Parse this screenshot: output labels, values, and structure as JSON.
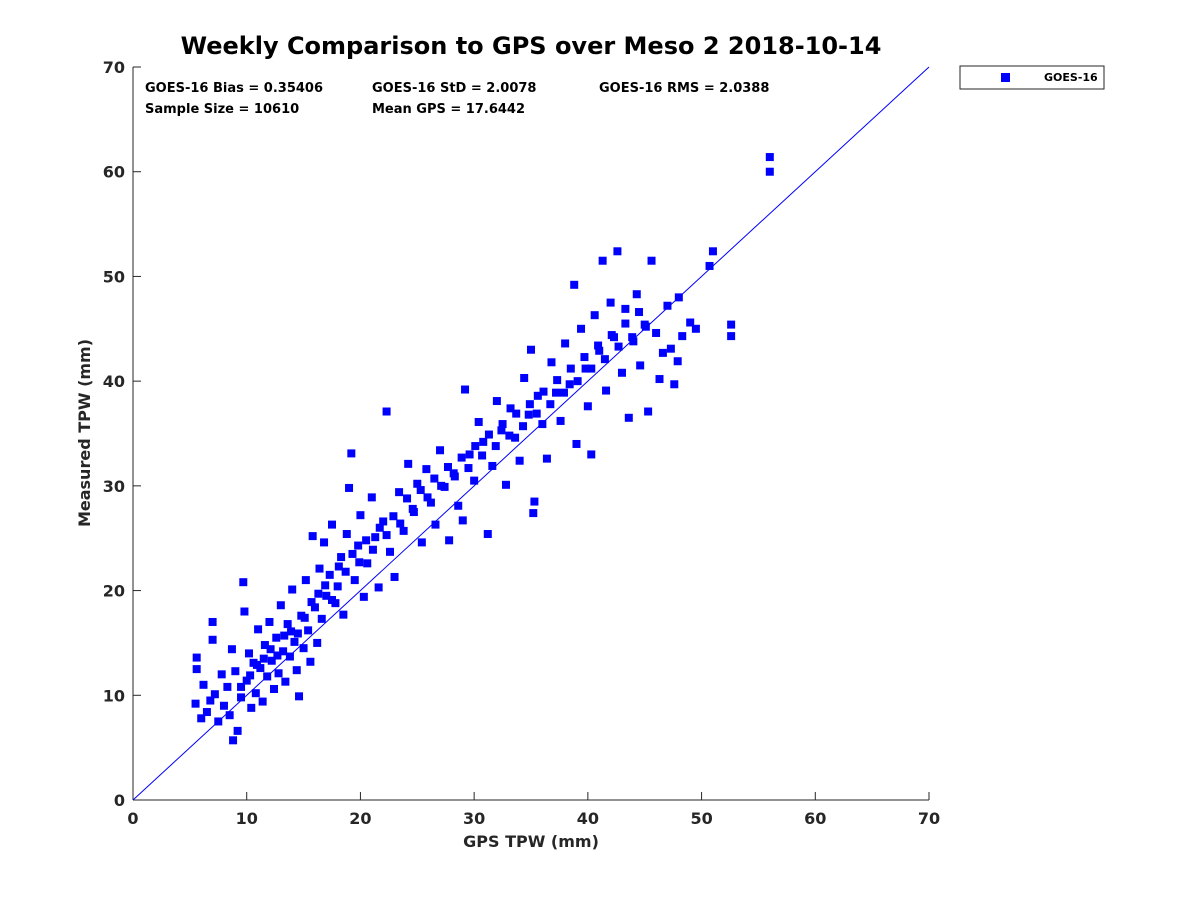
{
  "chart_data": {
    "type": "scatter",
    "title": "Weekly Comparison to GPS over Meso 2 2018-10-14",
    "xlabel": "GPS TPW (mm)",
    "ylabel": "Measured TPW (mm)",
    "xlim": [
      0,
      70
    ],
    "ylim": [
      0,
      70
    ],
    "xticks": [
      "0",
      "10",
      "20",
      "30",
      "40",
      "50",
      "60",
      "70"
    ],
    "yticks": [
      "0",
      "10",
      "20",
      "30",
      "40",
      "50",
      "60",
      "70"
    ],
    "grid": false,
    "legend_position": "outside-top-right",
    "reference_line": {
      "from": [
        0,
        0
      ],
      "to": [
        70,
        70
      ],
      "color": "#0000ff"
    },
    "stats": {
      "bias": "GOES-16 Bias = 0.35406",
      "std": "GOES-16 StD = 2.0078",
      "rms": "GOES-16 RMS = 2.0388",
      "sample_size": "Sample Size = 10610",
      "mean_gps": "Mean GPS = 17.6442"
    },
    "series": [
      {
        "name": "GOES-16",
        "color": "#0000ff",
        "marker": "square",
        "points": [
          [
            5.5,
            9.2
          ],
          [
            5.6,
            12.5
          ],
          [
            5.6,
            13.6
          ],
          [
            6.0,
            7.8
          ],
          [
            6.2,
            11.0
          ],
          [
            6.5,
            8.4
          ],
          [
            6.8,
            9.5
          ],
          [
            7.0,
            17.0
          ],
          [
            7.0,
            15.3
          ],
          [
            7.2,
            10.1
          ],
          [
            7.5,
            7.5
          ],
          [
            7.8,
            12.0
          ],
          [
            8.0,
            9.0
          ],
          [
            8.3,
            10.8
          ],
          [
            8.5,
            8.1
          ],
          [
            8.7,
            14.4
          ],
          [
            8.8,
            5.7
          ],
          [
            9.0,
            12.3
          ],
          [
            9.2,
            6.6
          ],
          [
            9.5,
            9.8
          ],
          [
            9.7,
            20.8
          ],
          [
            9.8,
            18.0
          ],
          [
            10.0,
            11.4
          ],
          [
            10.2,
            14.0
          ],
          [
            10.4,
            8.8
          ],
          [
            10.6,
            13.1
          ],
          [
            10.8,
            10.2
          ],
          [
            11.0,
            16.3
          ],
          [
            11.2,
            12.6
          ],
          [
            11.4,
            9.4
          ],
          [
            11.6,
            14.8
          ],
          [
            11.8,
            11.8
          ],
          [
            12.0,
            17.0
          ],
          [
            12.2,
            13.3
          ],
          [
            12.4,
            10.6
          ],
          [
            12.6,
            15.5
          ],
          [
            12.8,
            12.1
          ],
          [
            13.0,
            18.6
          ],
          [
            13.2,
            14.2
          ],
          [
            13.4,
            11.3
          ],
          [
            13.6,
            16.8
          ],
          [
            13.8,
            13.7
          ],
          [
            14.0,
            20.1
          ],
          [
            14.2,
            15.1
          ],
          [
            14.4,
            12.4
          ],
          [
            14.6,
            9.9
          ],
          [
            14.8,
            17.6
          ],
          [
            15.0,
            14.5
          ],
          [
            15.2,
            21.0
          ],
          [
            15.4,
            16.2
          ],
          [
            15.6,
            13.2
          ],
          [
            15.8,
            25.2
          ],
          [
            16.0,
            18.4
          ],
          [
            16.2,
            15.0
          ],
          [
            16.4,
            22.1
          ],
          [
            16.6,
            17.3
          ],
          [
            16.8,
            24.6
          ],
          [
            17.0,
            19.5
          ],
          [
            17.3,
            21.5
          ],
          [
            17.5,
            26.3
          ],
          [
            17.8,
            18.8
          ],
          [
            18.0,
            20.4
          ],
          [
            18.3,
            23.2
          ],
          [
            18.5,
            17.7
          ],
          [
            18.8,
            25.4
          ],
          [
            19.0,
            29.8
          ],
          [
            19.2,
            33.1
          ],
          [
            19.5,
            21.0
          ],
          [
            19.8,
            24.3
          ],
          [
            20.0,
            27.2
          ],
          [
            20.3,
            19.4
          ],
          [
            20.6,
            22.6
          ],
          [
            21.0,
            28.9
          ],
          [
            21.3,
            25.1
          ],
          [
            21.6,
            20.3
          ],
          [
            22.0,
            26.6
          ],
          [
            22.3,
            37.1
          ],
          [
            22.6,
            23.7
          ],
          [
            23.0,
            21.3
          ],
          [
            23.4,
            29.4
          ],
          [
            23.8,
            25.7
          ],
          [
            24.2,
            32.1
          ],
          [
            24.6,
            27.8
          ],
          [
            25.0,
            30.2
          ],
          [
            25.4,
            24.6
          ],
          [
            25.8,
            31.6
          ],
          [
            26.2,
            28.4
          ],
          [
            26.6,
            26.3
          ],
          [
            27.0,
            33.4
          ],
          [
            27.4,
            29.9
          ],
          [
            27.8,
            24.8
          ],
          [
            28.2,
            31.2
          ],
          [
            28.6,
            28.1
          ],
          [
            29.0,
            26.7
          ],
          [
            29.2,
            39.2
          ],
          [
            29.6,
            33.0
          ],
          [
            30.0,
            30.5
          ],
          [
            30.4,
            36.1
          ],
          [
            30.8,
            34.2
          ],
          [
            31.2,
            25.4
          ],
          [
            31.6,
            31.9
          ],
          [
            32.0,
            38.1
          ],
          [
            32.4,
            35.3
          ],
          [
            32.8,
            30.1
          ],
          [
            33.2,
            37.4
          ],
          [
            33.6,
            34.6
          ],
          [
            34.0,
            32.4
          ],
          [
            34.4,
            40.3
          ],
          [
            34.8,
            36.8
          ],
          [
            35.0,
            43.0
          ],
          [
            35.2,
            27.4
          ],
          [
            35.3,
            28.5
          ],
          [
            35.6,
            38.6
          ],
          [
            36.0,
            35.9
          ],
          [
            36.4,
            32.6
          ],
          [
            36.8,
            41.8
          ],
          [
            37.2,
            38.9
          ],
          [
            37.6,
            36.2
          ],
          [
            38.0,
            43.6
          ],
          [
            38.4,
            39.7
          ],
          [
            38.8,
            49.2
          ],
          [
            39.0,
            34.0
          ],
          [
            39.4,
            45.0
          ],
          [
            39.8,
            41.2
          ],
          [
            40.0,
            37.6
          ],
          [
            40.3,
            33.0
          ],
          [
            40.6,
            46.3
          ],
          [
            41.0,
            42.9
          ],
          [
            41.3,
            51.5
          ],
          [
            41.6,
            39.1
          ],
          [
            42.0,
            47.5
          ],
          [
            42.3,
            44.2
          ],
          [
            42.6,
            52.4
          ],
          [
            43.0,
            40.8
          ],
          [
            43.3,
            46.9
          ],
          [
            43.6,
            36.5
          ],
          [
            44.0,
            43.8
          ],
          [
            44.3,
            48.3
          ],
          [
            44.6,
            41.5
          ],
          [
            45.0,
            45.4
          ],
          [
            45.3,
            37.1
          ],
          [
            45.6,
            51.5
          ],
          [
            46.0,
            44.6
          ],
          [
            46.3,
            40.2
          ],
          [
            46.6,
            42.7
          ],
          [
            47.0,
            47.2
          ],
          [
            47.3,
            43.1
          ],
          [
            47.6,
            39.7
          ],
          [
            47.9,
            41.9
          ],
          [
            48.0,
            48.0
          ],
          [
            48.3,
            44.3
          ],
          [
            49.0,
            45.6
          ],
          [
            49.5,
            45.0
          ],
          [
            50.7,
            51.0
          ],
          [
            51.0,
            52.4
          ],
          [
            52.6,
            45.4
          ],
          [
            52.6,
            44.3
          ],
          [
            56.0,
            61.4
          ],
          [
            56.0,
            60.0
          ],
          [
            9.5,
            10.8
          ],
          [
            10.3,
            11.9
          ],
          [
            10.9,
            12.9
          ],
          [
            11.5,
            13.5
          ],
          [
            12.1,
            14.4
          ],
          [
            12.7,
            13.8
          ],
          [
            13.3,
            15.7
          ],
          [
            13.9,
            16.1
          ],
          [
            14.5,
            15.9
          ],
          [
            15.1,
            17.4
          ],
          [
            15.7,
            18.9
          ],
          [
            16.3,
            19.7
          ],
          [
            16.9,
            20.5
          ],
          [
            17.5,
            19.1
          ],
          [
            18.1,
            22.3
          ],
          [
            18.7,
            21.8
          ],
          [
            19.3,
            23.5
          ],
          [
            19.9,
            22.7
          ],
          [
            20.5,
            24.8
          ],
          [
            21.1,
            23.9
          ],
          [
            21.7,
            26.0
          ],
          [
            22.3,
            25.3
          ],
          [
            22.9,
            27.1
          ],
          [
            23.5,
            26.4
          ],
          [
            24.1,
            28.8
          ],
          [
            24.7,
            27.5
          ],
          [
            25.3,
            29.6
          ],
          [
            25.9,
            28.9
          ],
          [
            26.5,
            30.7
          ],
          [
            27.1,
            30.0
          ],
          [
            27.7,
            31.8
          ],
          [
            28.3,
            30.9
          ],
          [
            28.9,
            32.7
          ],
          [
            29.5,
            31.7
          ],
          [
            30.1,
            33.8
          ],
          [
            30.7,
            32.9
          ],
          [
            31.3,
            34.9
          ],
          [
            31.9,
            33.8
          ],
          [
            32.5,
            35.9
          ],
          [
            33.1,
            34.8
          ],
          [
            33.7,
            36.9
          ],
          [
            34.3,
            35.7
          ],
          [
            34.9,
            37.8
          ],
          [
            35.5,
            36.9
          ],
          [
            36.1,
            39.0
          ],
          [
            36.7,
            37.8
          ],
          [
            37.3,
            40.1
          ],
          [
            37.9,
            38.9
          ],
          [
            38.5,
            41.2
          ],
          [
            39.1,
            40.0
          ],
          [
            39.7,
            42.3
          ],
          [
            40.3,
            41.2
          ],
          [
            40.9,
            43.4
          ],
          [
            41.5,
            42.1
          ],
          [
            42.1,
            44.4
          ],
          [
            42.7,
            43.3
          ],
          [
            43.3,
            45.5
          ],
          [
            43.9,
            44.2
          ],
          [
            44.5,
            46.6
          ],
          [
            45.1,
            45.2
          ]
        ]
      }
    ]
  }
}
